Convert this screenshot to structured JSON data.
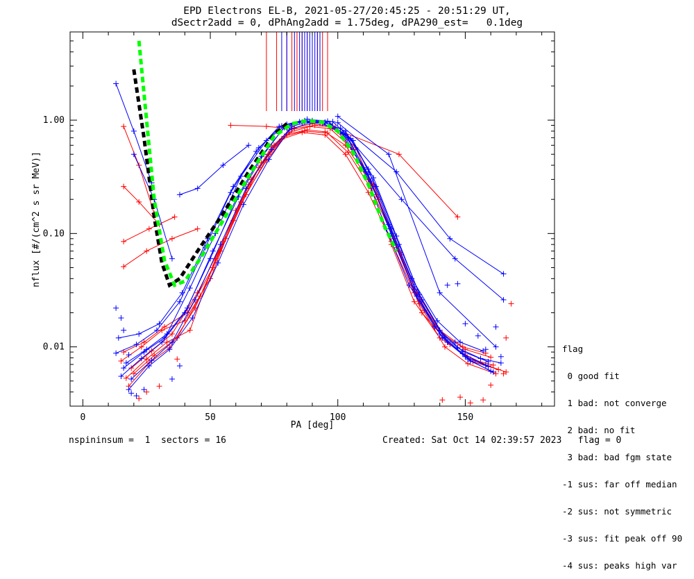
{
  "header": {
    "title_line1": "EPD Electrons EL-B, 2021-05-27/20:45:25 - 20:51:29 UT,",
    "title_line2": "dSectr2add = 0, dPhAng2add = 1.75deg, dPA290_est=   0.1deg"
  },
  "footer": {
    "left": "nspininsum =  1  sectors = 16",
    "right": "Created: Sat Oct 14 02:39:57 2023   flag = 0"
  },
  "legend": {
    "title": "flag",
    "items": [
      " 0 good fit",
      " 1 bad: not converge",
      " 2 bad: no fit",
      " 3 bad: bad fgm state",
      "-1 sus: far off median",
      "-2 sus: not symmetric",
      "-3 sus: fit peak off 90",
      "-4 sus: peaks high var"
    ]
  },
  "colors": {
    "red": "#ff0000",
    "blue": "#0000ff",
    "green": "#00ff00",
    "black": "#000000"
  },
  "chart_data": {
    "type": "line",
    "xlabel": "PA [deg]",
    "ylabel": "nflux [#/(cm^2 s sr MeV)]",
    "xlim": [
      -5,
      185
    ],
    "ylim": [
      0.003,
      6.0
    ],
    "yscale": "log",
    "xticks": [
      0,
      50,
      100,
      150
    ],
    "yticks": [
      0.01,
      0.1,
      1.0
    ],
    "ytick_labels": [
      "0.01",
      "0.10",
      "1.00"
    ],
    "series": [
      {
        "color": "red",
        "x": [
          17,
          25,
          33,
          42,
          52,
          62,
          72,
          80,
          88,
          95,
          103,
          112,
          121,
          130,
          140,
          150,
          159,
          166
        ],
        "y": [
          0.0053,
          0.0078,
          0.011,
          0.014,
          0.06,
          0.19,
          0.44,
          0.75,
          0.82,
          0.79,
          0.6,
          0.3,
          0.08,
          0.025,
          0.012,
          0.0085,
          0.0068,
          0.006
        ]
      },
      {
        "color": "red",
        "x": [
          19,
          27,
          35,
          45,
          55,
          65,
          74,
          82,
          90,
          98,
          106,
          115,
          124,
          133,
          143,
          152,
          161
        ],
        "y": [
          0.0065,
          0.0092,
          0.013,
          0.03,
          0.085,
          0.27,
          0.58,
          0.85,
          0.93,
          0.88,
          0.55,
          0.22,
          0.07,
          0.02,
          0.011,
          0.0078,
          0.0069
        ]
      },
      {
        "color": "red",
        "x": [
          16,
          24,
          32,
          41,
          51,
          60,
          70,
          79,
          87,
          96,
          104,
          113,
          122,
          131,
          141,
          150,
          160
        ],
        "y": [
          0.009,
          0.011,
          0.015,
          0.02,
          0.05,
          0.16,
          0.42,
          0.72,
          0.8,
          0.77,
          0.52,
          0.25,
          0.09,
          0.03,
          0.013,
          0.0095,
          0.0081
        ]
      },
      {
        "color": "red",
        "x": [
          18,
          26,
          34,
          44,
          54,
          64,
          73,
          81,
          89,
          97,
          105,
          114,
          123,
          132,
          142,
          151,
          162
        ],
        "y": [
          0.0045,
          0.0072,
          0.0098,
          0.022,
          0.07,
          0.22,
          0.5,
          0.78,
          0.88,
          0.84,
          0.58,
          0.27,
          0.075,
          0.024,
          0.01,
          0.0071,
          0.0058
        ]
      },
      {
        "color": "red",
        "x": [
          20,
          28,
          37,
          46,
          56,
          66,
          75,
          83,
          91,
          99,
          107,
          116,
          125,
          134,
          144,
          153,
          163
        ],
        "y": [
          0.0058,
          0.0084,
          0.012,
          0.028,
          0.09,
          0.3,
          0.6,
          0.84,
          0.9,
          0.86,
          0.57,
          0.2,
          0.065,
          0.021,
          0.0105,
          0.0074,
          0.0063
        ]
      },
      {
        "color": "red",
        "x": [
          15,
          23,
          31,
          40,
          50,
          59,
          69,
          78,
          86,
          95,
          103,
          112,
          121,
          130,
          140,
          149,
          158
        ],
        "y": [
          0.0075,
          0.01,
          0.014,
          0.017,
          0.04,
          0.13,
          0.38,
          0.68,
          0.78,
          0.74,
          0.5,
          0.23,
          0.085,
          0.03,
          0.014,
          0.01,
          0.0088
        ]
      },
      {
        "color": "red",
        "x": [
          16,
          22,
          30
        ],
        "y": [
          0.26,
          0.19,
          0.12
        ]
      },
      {
        "color": "red",
        "x": [
          16,
          26,
          36
        ],
        "y": [
          0.085,
          0.11,
          0.14
        ]
      },
      {
        "color": "red",
        "x": [
          16,
          25,
          35,
          45
        ],
        "y": [
          0.051,
          0.07,
          0.09,
          0.11
        ]
      },
      {
        "color": "red",
        "x": [
          58,
          72,
          80
        ],
        "y": [
          0.9,
          0.88,
          0.85
        ]
      },
      {
        "color": "red",
        "x": [
          98,
          124,
          147
        ],
        "y": [
          0.85,
          0.5,
          0.14
        ]
      },
      {
        "color": "red",
        "x": [
          16,
          22,
          28
        ],
        "y": [
          0.88,
          0.4,
          0.15
        ]
      },
      {
        "color": "blue",
        "x": [
          13,
          21,
          29,
          38,
          48,
          58,
          68,
          77,
          85,
          93,
          101,
          110,
          119,
          128,
          138,
          147,
          156,
          164
        ],
        "y": [
          0.0088,
          0.0105,
          0.014,
          0.025,
          0.075,
          0.23,
          0.53,
          0.88,
          0.97,
          0.95,
          0.78,
          0.38,
          0.11,
          0.035,
          0.015,
          0.0098,
          0.0079,
          0.0072
        ]
      },
      {
        "color": "blue",
        "x": [
          15,
          23,
          31,
          40,
          50,
          60,
          70,
          79,
          87,
          95,
          103,
          112,
          121,
          130,
          140,
          149,
          158
        ],
        "y": [
          0.0055,
          0.0079,
          0.011,
          0.02,
          0.06,
          0.2,
          0.48,
          0.86,
          0.99,
          0.96,
          0.74,
          0.33,
          0.1,
          0.032,
          0.013,
          0.0087,
          0.0069
        ]
      },
      {
        "color": "blue",
        "x": [
          17,
          25,
          33,
          42,
          52,
          62,
          72,
          80,
          88,
          96,
          104,
          113,
          122,
          131,
          141,
          150,
          159
        ],
        "y": [
          0.0072,
          0.0095,
          0.013,
          0.033,
          0.1,
          0.32,
          0.66,
          0.92,
          1.02,
          0.98,
          0.7,
          0.29,
          0.085,
          0.028,
          0.012,
          0.0082,
          0.0067
        ]
      },
      {
        "color": "blue",
        "x": [
          14,
          22,
          30,
          39,
          49,
          59,
          69,
          78,
          86,
          94,
          102,
          111,
          120,
          129,
          139,
          148,
          157
        ],
        "y": [
          0.012,
          0.013,
          0.016,
          0.03,
          0.09,
          0.26,
          0.57,
          0.89,
          0.96,
          0.94,
          0.76,
          0.35,
          0.12,
          0.04,
          0.017,
          0.011,
          0.0092
        ]
      },
      {
        "color": "blue",
        "x": [
          18,
          26,
          34,
          43,
          53,
          63,
          73,
          81,
          89,
          97,
          105,
          114,
          123,
          132,
          142,
          151,
          160
        ],
        "y": [
          0.0042,
          0.0068,
          0.0095,
          0.018,
          0.055,
          0.18,
          0.45,
          0.82,
          0.95,
          0.93,
          0.69,
          0.31,
          0.095,
          0.029,
          0.012,
          0.0078,
          0.0061
        ]
      },
      {
        "color": "blue",
        "x": [
          16,
          24,
          32,
          41,
          51,
          61,
          71,
          79,
          87,
          95,
          103,
          112,
          121,
          130,
          140,
          149,
          159
        ],
        "y": [
          0.0065,
          0.009,
          0.012,
          0.022,
          0.07,
          0.21,
          0.5,
          0.87,
          0.98,
          0.96,
          0.8,
          0.37,
          0.11,
          0.034,
          0.014,
          0.0091,
          0.0074
        ]
      },
      {
        "color": "blue",
        "x": [
          19,
          27,
          35,
          44,
          54,
          64,
          74,
          82,
          90,
          98,
          106,
          115,
          124,
          133,
          143,
          152,
          161
        ],
        "y": [
          0.0052,
          0.0076,
          0.011,
          0.026,
          0.08,
          0.25,
          0.55,
          0.88,
          0.99,
          0.97,
          0.66,
          0.26,
          0.08,
          0.026,
          0.011,
          0.0075,
          0.006
        ]
      },
      {
        "color": "blue",
        "x": [
          13,
          20,
          27
        ],
        "y": [
          2.1,
          0.8,
          0.28
        ]
      },
      {
        "color": "blue",
        "x": [
          20,
          28,
          35
        ],
        "y": [
          0.5,
          0.2,
          0.06
        ]
      },
      {
        "color": "blue",
        "x": [
          38,
          45,
          55,
          65
        ],
        "y": [
          0.22,
          0.25,
          0.4,
          0.6
        ]
      },
      {
        "color": "blue",
        "x": [
          100,
          123,
          144,
          165
        ],
        "y": [
          0.95,
          0.35,
          0.09,
          0.044
        ]
      },
      {
        "color": "blue",
        "x": [
          101,
          125,
          146,
          165
        ],
        "y": [
          0.85,
          0.2,
          0.06,
          0.026
        ]
      },
      {
        "color": "blue",
        "x": [
          100,
          120,
          140,
          162
        ],
        "y": [
          1.08,
          0.5,
          0.03,
          0.01
        ]
      },
      {
        "color": "black",
        "x": [
          20,
          24,
          28,
          31,
          34,
          38,
          45,
          55,
          65,
          75,
          80
        ],
        "y": [
          2.8,
          0.7,
          0.14,
          0.055,
          0.035,
          0.04,
          0.07,
          0.15,
          0.35,
          0.75,
          0.93
        ]
      },
      {
        "color": "green",
        "x": [
          22,
          25,
          28,
          32,
          36,
          40,
          46,
          55,
          65,
          75,
          82,
          88,
          94,
          100,
          106,
          112,
          118,
          123
        ],
        "y": [
          5.0,
          1.0,
          0.2,
          0.058,
          0.035,
          0.038,
          0.06,
          0.13,
          0.32,
          0.72,
          0.93,
          0.99,
          0.96,
          0.8,
          0.52,
          0.27,
          0.12,
          0.07
        ]
      }
    ],
    "top_spikes": {
      "red": [
        72,
        76,
        80,
        82,
        84,
        86,
        88,
        90,
        92,
        94,
        96
      ],
      "blue": [
        78,
        80,
        83,
        85,
        86,
        87,
        88,
        89,
        90,
        91,
        92,
        93
      ]
    },
    "scatter_points": {
      "red": [
        [
          22,
          0.0035
        ],
        [
          25,
          0.004
        ],
        [
          30,
          0.0045
        ],
        [
          37,
          0.0078
        ],
        [
          141,
          0.0034
        ],
        [
          148,
          0.0036
        ],
        [
          152,
          0.0032
        ],
        [
          157,
          0.0034
        ],
        [
          160,
          0.0046
        ],
        [
          165,
          0.0058
        ],
        [
          168,
          0.024
        ],
        [
          166,
          0.012
        ]
      ],
      "blue": [
        [
          13,
          0.022
        ],
        [
          15,
          0.018
        ],
        [
          16,
          0.014
        ],
        [
          18,
          0.0085
        ],
        [
          19,
          0.0039
        ],
        [
          21,
          0.0037
        ],
        [
          24,
          0.0042
        ],
        [
          35,
          0.0052
        ],
        [
          38,
          0.0068
        ],
        [
          143,
          0.035
        ],
        [
          147,
          0.036
        ],
        [
          146,
          0.011
        ],
        [
          150,
          0.016
        ],
        [
          155,
          0.0125
        ],
        [
          158,
          0.0095
        ],
        [
          162,
          0.015
        ],
        [
          164,
          0.0082
        ]
      ]
    }
  }
}
